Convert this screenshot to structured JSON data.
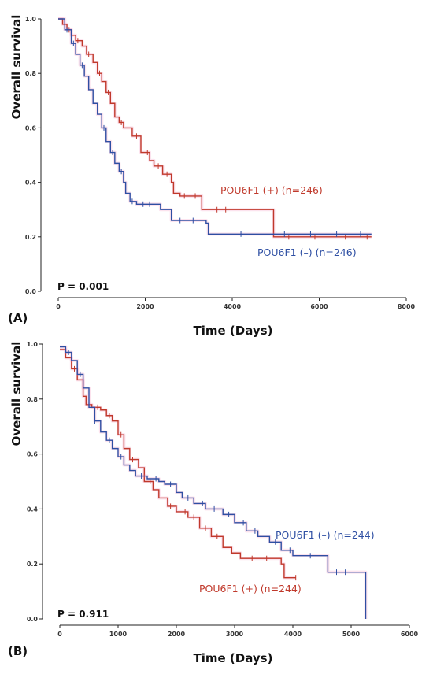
{
  "colors": {
    "positive": "#c0392b",
    "negative": "#2e4fa3",
    "ci_tint": "#f07fb0"
  },
  "chart_data": [
    {
      "type": "line",
      "panel_label": "(A)",
      "p_value": "P = 0.001",
      "xlabel": "Time (Days)",
      "ylabel": "Overall survival",
      "xlim": [
        0,
        8000
      ],
      "ylim": [
        0,
        1.0
      ],
      "x_ticks": [
        0,
        2000,
        4000,
        6000,
        8000
      ],
      "y_ticks": [
        0.0,
        0.2,
        0.4,
        0.6,
        0.8,
        1.0
      ],
      "x_tick_labels": [
        "0",
        "2000",
        "4000",
        "6000",
        "8000"
      ],
      "y_tick_labels": [
        "0.0",
        "0.2",
        "0.4",
        "0.6",
        "0.8",
        "1.0"
      ],
      "series": [
        {
          "name": "POU6F1 (+) (n=246)",
          "color": "#c0392b",
          "points": [
            [
              0,
              1.0
            ],
            [
              100,
              0.98
            ],
            [
              200,
              0.96
            ],
            [
              300,
              0.94
            ],
            [
              400,
              0.92
            ],
            [
              550,
              0.9
            ],
            [
              650,
              0.87
            ],
            [
              800,
              0.84
            ],
            [
              900,
              0.8
            ],
            [
              1000,
              0.77
            ],
            [
              1100,
              0.73
            ],
            [
              1200,
              0.69
            ],
            [
              1300,
              0.64
            ],
            [
              1400,
              0.62
            ],
            [
              1500,
              0.6
            ],
            [
              1700,
              0.57
            ],
            [
              1900,
              0.51
            ],
            [
              2100,
              0.48
            ],
            [
              2200,
              0.46
            ],
            [
              2400,
              0.43
            ],
            [
              2600,
              0.4
            ],
            [
              2650,
              0.36
            ],
            [
              2800,
              0.35
            ],
            [
              3300,
              0.3
            ],
            [
              4950,
              0.3
            ],
            [
              4950,
              0.2
            ],
            [
              7200,
              0.2
            ]
          ],
          "censor_x": [
            250,
            450,
            700,
            950,
            1150,
            1450,
            1800,
            2050,
            2300,
            2500,
            2900,
            3150,
            3650,
            3850,
            5300,
            5900,
            6600,
            7100
          ]
        },
        {
          "name": "POU6F1 (–) (n=246)",
          "color": "#2e4fa3",
          "points": [
            [
              0,
              1.0
            ],
            [
              150,
              0.96
            ],
            [
              300,
              0.91
            ],
            [
              400,
              0.87
            ],
            [
              500,
              0.83
            ],
            [
              600,
              0.79
            ],
            [
              700,
              0.74
            ],
            [
              800,
              0.69
            ],
            [
              900,
              0.65
            ],
            [
              1000,
              0.6
            ],
            [
              1100,
              0.55
            ],
            [
              1200,
              0.51
            ],
            [
              1300,
              0.47
            ],
            [
              1400,
              0.44
            ],
            [
              1500,
              0.4
            ],
            [
              1550,
              0.36
            ],
            [
              1650,
              0.33
            ],
            [
              1800,
              0.32
            ],
            [
              2350,
              0.3
            ],
            [
              2600,
              0.26
            ],
            [
              3400,
              0.25
            ],
            [
              3450,
              0.21
            ],
            [
              7200,
              0.21
            ]
          ],
          "censor_x": [
            200,
            350,
            550,
            750,
            1050,
            1250,
            1450,
            1700,
            1950,
            2100,
            2800,
            3100,
            4200,
            5200,
            5800,
            6400,
            6950
          ]
        }
      ]
    },
    {
      "type": "line",
      "panel_label": "(B)",
      "p_value": "P = 0.911",
      "xlabel": "Time (Days)",
      "ylabel": "Overall survival",
      "xlim": [
        0,
        6000
      ],
      "ylim": [
        0,
        1.0
      ],
      "x_ticks": [
        0,
        1000,
        2000,
        3000,
        4000,
        5000,
        6000
      ],
      "y_ticks": [
        0.0,
        0.2,
        0.4,
        0.6,
        0.8,
        1.0
      ],
      "x_tick_labels": [
        "0",
        "1000",
        "2000",
        "3000",
        "4000",
        "5000",
        "6000"
      ],
      "y_tick_labels": [
        "0.0",
        "0.2",
        "0.4",
        "0.6",
        "0.8",
        "1.0"
      ],
      "series": [
        {
          "name": "POU6F1 (+) (n=244)",
          "color": "#c0392b",
          "points": [
            [
              0,
              0.98
            ],
            [
              100,
              0.95
            ],
            [
              200,
              0.91
            ],
            [
              300,
              0.87
            ],
            [
              400,
              0.81
            ],
            [
              450,
              0.78
            ],
            [
              550,
              0.77
            ],
            [
              700,
              0.76
            ],
            [
              800,
              0.74
            ],
            [
              900,
              0.72
            ],
            [
              1000,
              0.67
            ],
            [
              1100,
              0.62
            ],
            [
              1200,
              0.58
            ],
            [
              1350,
              0.55
            ],
            [
              1450,
              0.5
            ],
            [
              1600,
              0.47
            ],
            [
              1700,
              0.44
            ],
            [
              1850,
              0.41
            ],
            [
              2000,
              0.39
            ],
            [
              2200,
              0.37
            ],
            [
              2400,
              0.33
            ],
            [
              2600,
              0.3
            ],
            [
              2800,
              0.26
            ],
            [
              2950,
              0.24
            ],
            [
              3100,
              0.22
            ],
            [
              3800,
              0.2
            ],
            [
              3850,
              0.15
            ],
            [
              4050,
              0.15
            ]
          ],
          "censor_x": [
            250,
            500,
            650,
            850,
            1050,
            1250,
            1550,
            1900,
            2150,
            2300,
            2500,
            2700,
            3300,
            3550,
            4050
          ]
        },
        {
          "name": "POU6F1 (–) (n=244)",
          "color": "#2e4fa3",
          "points": [
            [
              0,
              0.99
            ],
            [
              100,
              0.97
            ],
            [
              200,
              0.94
            ],
            [
              300,
              0.89
            ],
            [
              400,
              0.84
            ],
            [
              500,
              0.77
            ],
            [
              600,
              0.72
            ],
            [
              700,
              0.68
            ],
            [
              800,
              0.65
            ],
            [
              900,
              0.62
            ],
            [
              1000,
              0.59
            ],
            [
              1100,
              0.56
            ],
            [
              1200,
              0.54
            ],
            [
              1300,
              0.52
            ],
            [
              1500,
              0.51
            ],
            [
              1700,
              0.5
            ],
            [
              1800,
              0.49
            ],
            [
              2000,
              0.46
            ],
            [
              2100,
              0.44
            ],
            [
              2300,
              0.42
            ],
            [
              2500,
              0.4
            ],
            [
              2800,
              0.38
            ],
            [
              3000,
              0.35
            ],
            [
              3200,
              0.32
            ],
            [
              3400,
              0.3
            ],
            [
              3600,
              0.28
            ],
            [
              3800,
              0.25
            ],
            [
              4000,
              0.23
            ],
            [
              4500,
              0.23
            ],
            [
              4600,
              0.17
            ],
            [
              5250,
              0.17
            ],
            [
              5250,
              0.0
            ]
          ],
          "censor_x": [
            150,
            350,
            600,
            850,
            1050,
            1400,
            1650,
            1900,
            2200,
            2450,
            2650,
            2900,
            3150,
            3350,
            3700,
            3950,
            4300,
            4750,
            4900
          ]
        }
      ]
    }
  ],
  "legend_A": {
    "pos": "POU6F1 (+) (n=246)",
    "neg": "POU6F1 (–) (n=246)"
  },
  "legend_B": {
    "pos": "POU6F1 (+) (n=244)",
    "neg": "POU6F1 (–) (n=244)"
  }
}
